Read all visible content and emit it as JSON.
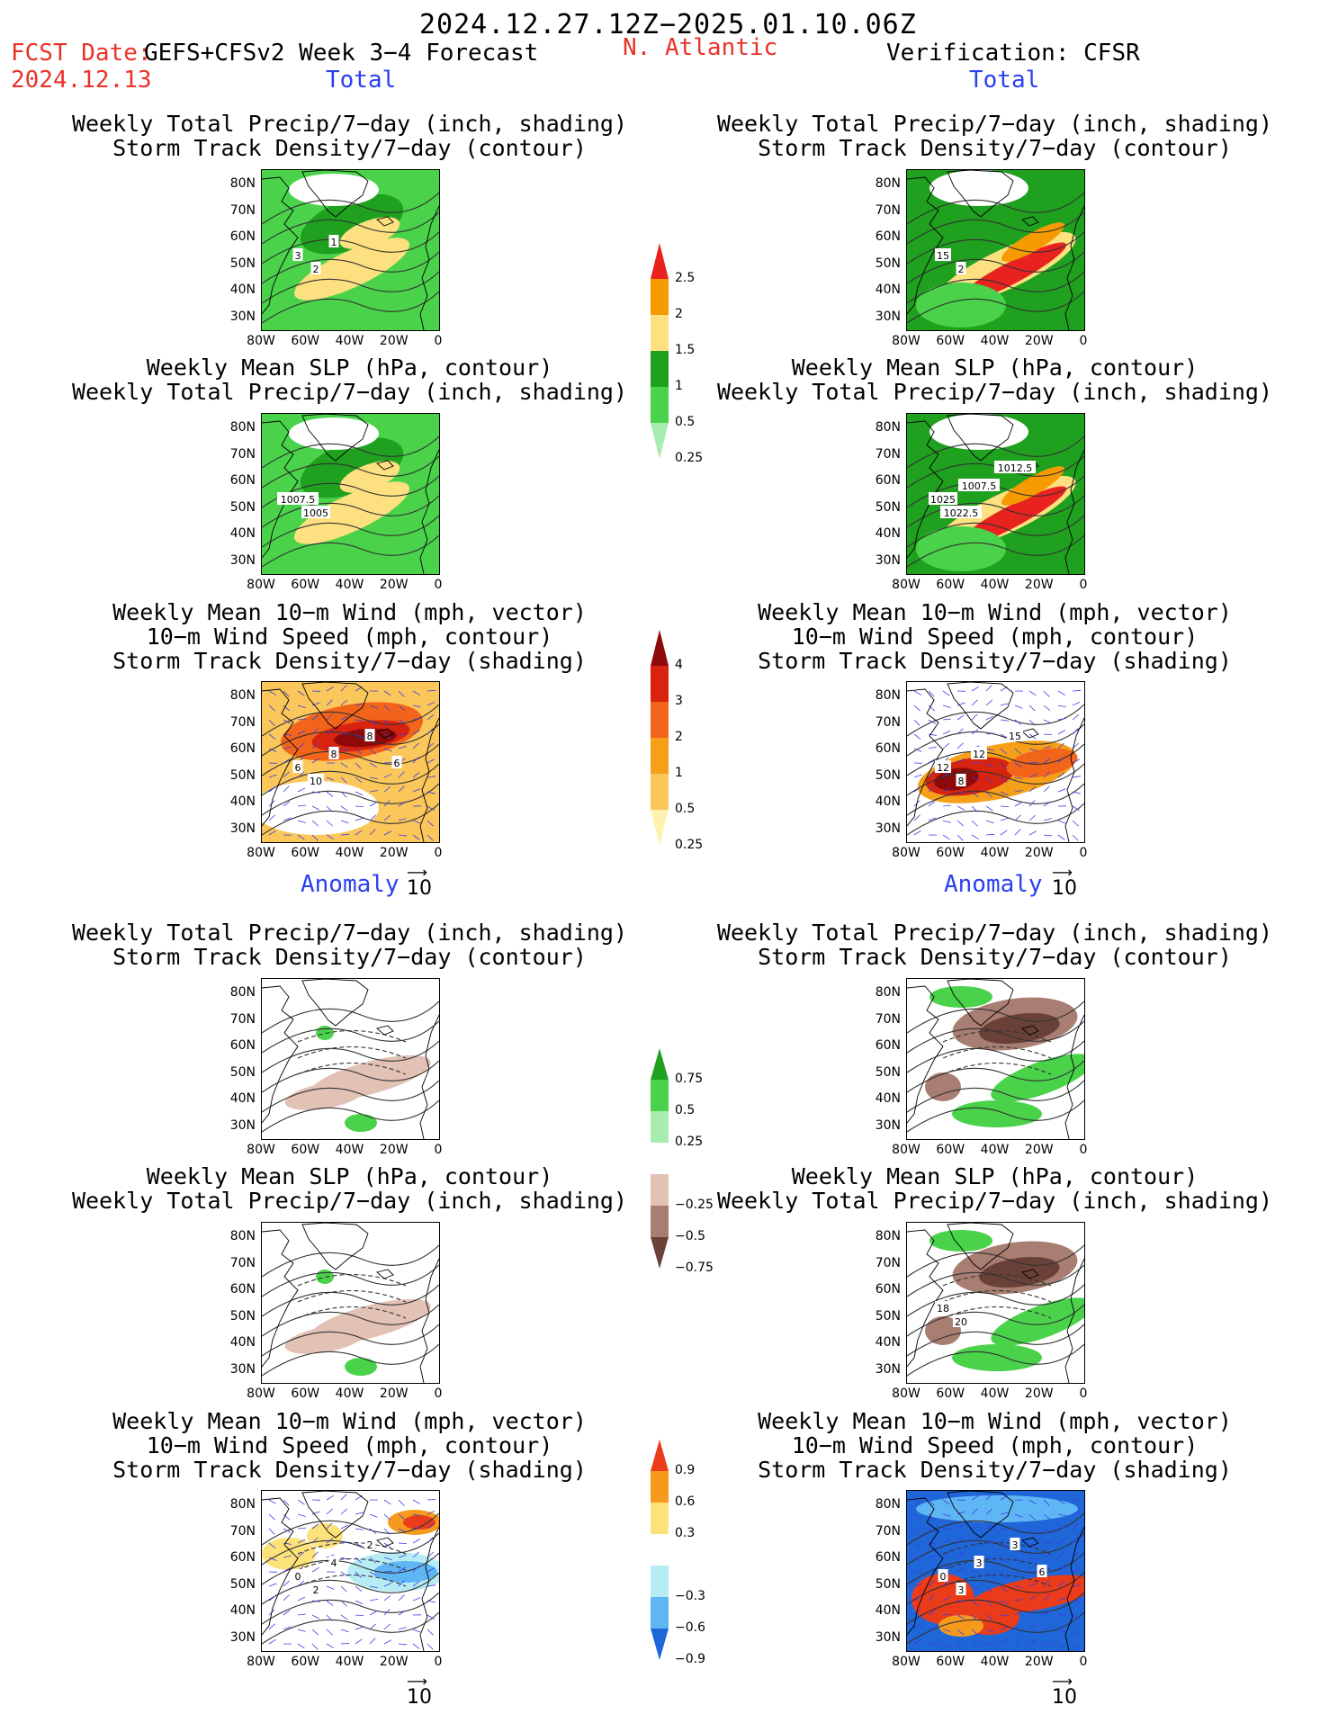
{
  "header": {
    "period": "2024.12.27.12Z−2025.01.10.06Z",
    "fcst_date_label": "FCST Date:",
    "fcst_date_value": "2024.12.13",
    "model": "GEFS+CFSv2 Week 3−4 Forecast",
    "region": "N. Atlantic",
    "verification": "Verification: CFSR",
    "total_label": "Total",
    "anomaly_label": "Anomaly"
  },
  "panel_titles": {
    "precip_storm": [
      "Weekly Total Precip/7−day (inch, shading)",
      "Storm Track Density/7−day (contour)"
    ],
    "slp_precip": [
      "Weekly Mean SLP (hPa, contour)",
      "Weekly Total Precip/7−day (inch, shading)"
    ],
    "wind": [
      "Weekly Mean 10−m Wind (mph, vector)",
      "10−m Wind Speed (mph, contour)",
      "Storm Track Density/7−day (shading)"
    ]
  },
  "axes": {
    "lat_labels": [
      "80N",
      "70N",
      "60N",
      "50N",
      "40N",
      "30N"
    ],
    "lon_labels": [
      "80W",
      "60W",
      "40W",
      "20W",
      "0"
    ]
  },
  "vector_scale": "10",
  "colorbars": {
    "precip_total": {
      "labels": [
        "2.5",
        "2",
        "1.5",
        "1",
        "0.5",
        "0.25"
      ],
      "colors": [
        "#e8221e",
        "#f59a00",
        "#fde080",
        "#1fa01f",
        "#49d24a",
        "#a9ecb0"
      ]
    },
    "storm_total": {
      "labels": [
        "4",
        "3",
        "2",
        "1",
        "0.5",
        "0.25"
      ],
      "colors": [
        "#8e0a0a",
        "#d8230f",
        "#f2641a",
        "#f6a01a",
        "#fbc65a",
        "#fdf3b0"
      ]
    },
    "precip_anom": {
      "labels": [
        "0.75",
        "0.5",
        "0.25",
        "−0.25",
        "−0.5",
        "−0.75"
      ],
      "colors": [
        "#1fa01f",
        "#49d24a",
        "#a9ecb0",
        "#ffffff",
        "#e3c2b6",
        "#a87d72",
        "#6a4138"
      ]
    },
    "storm_anom": {
      "labels": [
        "0.9",
        "0.6",
        "0.3",
        "−0.3",
        "−0.6",
        "−0.9"
      ],
      "colors": [
        "#ea3b1b",
        "#f69a1e",
        "#fde27a",
        "#ffffff",
        "#b7ecf5",
        "#5fb6f4",
        "#1f66d8"
      ]
    }
  },
  "contour_labels": {
    "f1": [
      "3",
      "2",
      "1"
    ],
    "f2": [
      "1007.5",
      "1005"
    ],
    "f3": [
      "6",
      "10",
      "8",
      "8",
      "6"
    ],
    "v1": [
      "15",
      "2"
    ],
    "v2": [
      "1025",
      "1022.5",
      "1007.5",
      "1012.5"
    ],
    "v3": [
      "12",
      "8",
      "12",
      "15"
    ],
    "fa3": [
      "0",
      "2",
      "4",
      "2"
    ],
    "va2": [
      "18",
      "20"
    ],
    "va3": [
      "0",
      "3",
      "3",
      "3",
      "6"
    ]
  }
}
